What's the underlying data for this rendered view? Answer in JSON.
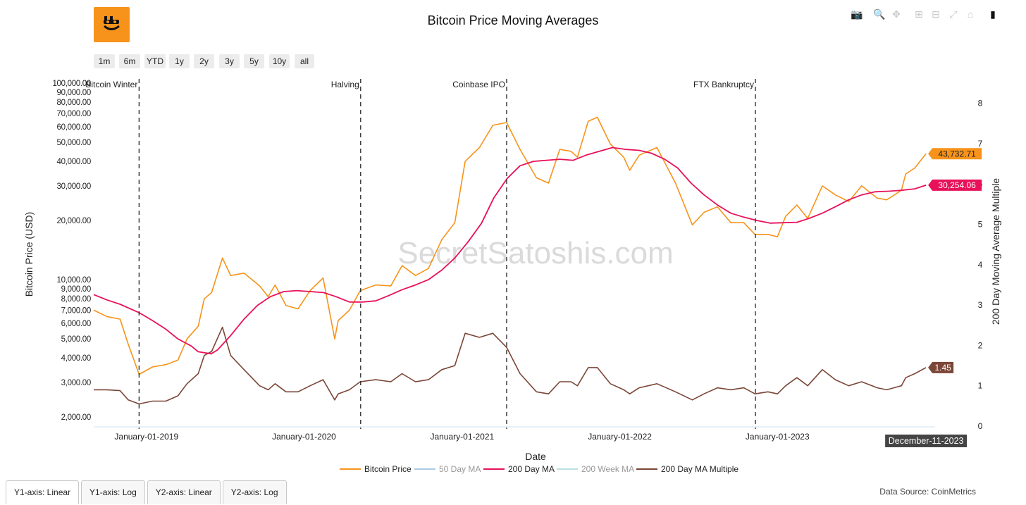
{
  "colors": {
    "bitcoin_price": "#f7931a",
    "ma_50": "#87b7d9",
    "ma_200": "#e8115a",
    "ma_200w": "#9bd4d8",
    "ma_multiple": "#7b4637",
    "event_line": "#222222",
    "date_badge": "#444444"
  },
  "logo_icon": "bitcoin-smile-logo",
  "modebar": [
    {
      "name": "camera-icon",
      "glyph": "📷"
    },
    {
      "name": "zoom-icon",
      "glyph": "🔍"
    },
    {
      "name": "pan-icon",
      "glyph": "✥"
    },
    {
      "name": "zoom-in-icon",
      "glyph": "⊞"
    },
    {
      "name": "zoom-out-icon",
      "glyph": "⊟"
    },
    {
      "name": "autoscale-icon",
      "glyph": "⤢"
    },
    {
      "name": "reset-axes-icon",
      "glyph": "⌂"
    },
    {
      "name": "plotly-logo-icon",
      "glyph": "▮"
    }
  ],
  "range_buttons": [
    "1m",
    "6m",
    "YTD",
    "1y",
    "2y",
    "3y",
    "5y",
    "10y",
    "all"
  ],
  "watermark": "SecretSatoshis.com",
  "tabs": [
    "Y1-axis: Linear",
    "Y1-axis: Log",
    "Y2-axis: Linear",
    "Y2-axis: Log"
  ],
  "data_source": "Data Source: CoinMetrics",
  "chart_data": {
    "type": "line",
    "title": "Bitcoin Price Moving Averages",
    "xlabel": "Date",
    "ylabel": "Bitcoin Price (USD)",
    "y2label": "200 Day Moving Average Multiple",
    "y_scale": "log",
    "ylim": [
      1800,
      100000
    ],
    "y2lim": [
      0,
      8.5
    ],
    "xlim": [
      "2018-09-01",
      "2024-01-01"
    ],
    "x_ticks": [
      "2019-01-01",
      "2020-01-01",
      "2021-01-01",
      "2022-01-01",
      "2023-01-01"
    ],
    "x_tick_labels": [
      "January-01-2019",
      "January-01-2020",
      "January-01-2021",
      "January-01-2022",
      "January-01-2023"
    ],
    "y_ticks": [
      2000,
      3000,
      4000,
      5000,
      6000,
      7000,
      8000,
      9000,
      10000,
      20000,
      30000,
      40000,
      50000,
      60000,
      70000,
      80000,
      90000,
      100000
    ],
    "y_tick_labels": [
      "2,000.00",
      "3,000.00",
      "4,000.00",
      "5,000.00",
      "6,000.00",
      "7,000.00",
      "8,000.00",
      "9,000.00",
      "10,000.00",
      "20,000.00",
      "30,000.00",
      "40,000.00",
      "50,000.00",
      "60,000.00",
      "70,000.00",
      "80,000.00",
      "90,000.00",
      "100,000.00"
    ],
    "y2_ticks": [
      0,
      1,
      2,
      3,
      4,
      5,
      6,
      7,
      8
    ],
    "y2_tick_labels": [
      "0",
      "1",
      "2",
      "3",
      "4",
      "5",
      "6",
      "7",
      "8"
    ],
    "legend_position": "bottom-center",
    "series": [
      {
        "name": "Bitcoin Price",
        "axis": "y",
        "visible": true,
        "x": [
          "2018-09-01",
          "2018-10-01",
          "2018-11-01",
          "2018-11-20",
          "2018-12-15",
          "2019-01-15",
          "2019-02-15",
          "2019-03-15",
          "2019-04-05",
          "2019-05-01",
          "2019-05-15",
          "2019-06-01",
          "2019-06-26",
          "2019-07-15",
          "2019-08-15",
          "2019-09-20",
          "2019-10-10",
          "2019-10-26",
          "2019-11-20",
          "2019-12-18",
          "2020-01-15",
          "2020-02-14",
          "2020-03-12",
          "2020-03-20",
          "2020-04-15",
          "2020-05-10",
          "2020-06-15",
          "2020-07-20",
          "2020-08-15",
          "2020-09-15",
          "2020-10-15",
          "2020-11-15",
          "2020-12-15",
          "2021-01-08",
          "2021-02-10",
          "2021-03-13",
          "2021-04-14",
          "2021-05-15",
          "2021-06-22",
          "2021-07-20",
          "2021-08-15",
          "2021-09-10",
          "2021-09-25",
          "2021-10-20",
          "2021-11-10",
          "2021-12-10",
          "2022-01-10",
          "2022-01-24",
          "2022-02-15",
          "2022-03-28",
          "2022-05-10",
          "2022-06-18",
          "2022-07-15",
          "2022-08-15",
          "2022-09-15",
          "2022-10-15",
          "2022-11-10",
          "2022-12-10",
          "2023-01-01",
          "2023-01-20",
          "2023-02-15",
          "2023-03-12",
          "2023-04-15",
          "2023-05-15",
          "2023-06-15",
          "2023-07-15",
          "2023-08-20",
          "2023-09-11",
          "2023-10-15",
          "2023-10-25",
          "2023-11-15",
          "2023-12-11"
        ],
        "values": [
          7000,
          6500,
          6300,
          4700,
          3300,
          3600,
          3700,
          3900,
          5000,
          5800,
          8000,
          8600,
          12900,
          10500,
          10800,
          9300,
          8200,
          9400,
          7400,
          7100,
          8800,
          10200,
          5000,
          6200,
          7000,
          8800,
          9400,
          9300,
          11800,
          10500,
          11400,
          16000,
          19500,
          40000,
          47000,
          61000,
          63000,
          46000,
          33000,
          31000,
          46000,
          45000,
          42000,
          64000,
          67000,
          49000,
          42000,
          36000,
          43000,
          47000,
          31000,
          19000,
          22000,
          23500,
          19500,
          19500,
          17000,
          17000,
          16550,
          21000,
          24000,
          20500,
          30000,
          27000,
          25000,
          30000,
          26000,
          25500,
          28500,
          34500,
          37000,
          43732.71
        ]
      },
      {
        "name": "50 Day MA",
        "axis": "y",
        "visible": false,
        "x": [],
        "values": []
      },
      {
        "name": "200 Day MA",
        "axis": "y",
        "visible": true,
        "x": [
          "2018-09-01",
          "2018-10-01",
          "2018-11-01",
          "2018-12-15",
          "2019-01-15",
          "2019-02-15",
          "2019-03-15",
          "2019-04-15",
          "2019-05-01",
          "2019-05-31",
          "2019-06-15",
          "2019-07-15",
          "2019-08-15",
          "2019-09-15",
          "2019-10-15",
          "2019-11-15",
          "2019-12-15",
          "2020-01-15",
          "2020-02-15",
          "2020-03-15",
          "2020-04-15",
          "2020-05-15",
          "2020-06-15",
          "2020-07-15",
          "2020-08-15",
          "2020-09-15",
          "2020-10-15",
          "2020-11-15",
          "2020-12-15",
          "2021-01-15",
          "2021-02-15",
          "2021-03-15",
          "2021-04-15",
          "2021-05-15",
          "2021-06-15",
          "2021-07-15",
          "2021-08-15",
          "2021-09-15",
          "2021-10-15",
          "2021-11-15",
          "2021-12-15",
          "2022-01-15",
          "2022-02-15",
          "2022-03-15",
          "2022-04-15",
          "2022-05-15",
          "2022-06-15",
          "2022-07-15",
          "2022-08-15",
          "2022-09-15",
          "2022-10-15",
          "2022-11-15",
          "2022-12-15",
          "2023-01-15",
          "2023-02-15",
          "2023-03-15",
          "2023-04-15",
          "2023-05-15",
          "2023-06-15",
          "2023-07-15",
          "2023-08-15",
          "2023-09-15",
          "2023-10-15",
          "2023-11-15",
          "2023-12-11"
        ],
        "values": [
          8400,
          7900,
          7500,
          6800,
          6200,
          5600,
          5000,
          4600,
          4300,
          4200,
          4400,
          5200,
          6300,
          7400,
          8200,
          8700,
          8800,
          8700,
          8600,
          8200,
          7700,
          7700,
          7800,
          8300,
          8900,
          9400,
          10000,
          11200,
          12900,
          15600,
          19400,
          26000,
          32700,
          38000,
          40000,
          40500,
          41000,
          40500,
          43000,
          45000,
          47000,
          46000,
          45500,
          44000,
          41000,
          37000,
          31000,
          27000,
          24000,
          21800,
          20800,
          20000,
          19400,
          19500,
          19600,
          20500,
          21800,
          23500,
          25500,
          27000,
          28000,
          28200,
          28500,
          29000,
          30254.06
        ]
      },
      {
        "name": "200 Week MA",
        "axis": "y",
        "visible": false,
        "x": [],
        "values": []
      },
      {
        "name": "200 Day MA Multiple",
        "axis": "y2",
        "visible": true,
        "x": [
          "2018-09-01",
          "2018-10-01",
          "2018-11-01",
          "2018-11-20",
          "2018-12-15",
          "2019-01-15",
          "2019-02-15",
          "2019-03-15",
          "2019-04-05",
          "2019-05-01",
          "2019-05-15",
          "2019-06-01",
          "2019-06-26",
          "2019-07-15",
          "2019-08-15",
          "2019-09-20",
          "2019-10-10",
          "2019-10-26",
          "2019-11-20",
          "2019-12-18",
          "2020-01-15",
          "2020-02-14",
          "2020-03-12",
          "2020-03-20",
          "2020-04-15",
          "2020-05-10",
          "2020-06-15",
          "2020-07-20",
          "2020-08-15",
          "2020-09-15",
          "2020-10-15",
          "2020-11-15",
          "2020-12-15",
          "2021-01-08",
          "2021-02-10",
          "2021-03-13",
          "2021-04-14",
          "2021-05-15",
          "2021-06-22",
          "2021-07-20",
          "2021-08-15",
          "2021-09-10",
          "2021-09-25",
          "2021-10-20",
          "2021-11-10",
          "2021-12-10",
          "2022-01-10",
          "2022-01-24",
          "2022-02-15",
          "2022-03-28",
          "2022-05-10",
          "2022-06-18",
          "2022-07-15",
          "2022-08-15",
          "2022-09-15",
          "2022-10-15",
          "2022-11-10",
          "2022-12-10",
          "2023-01-01",
          "2023-01-20",
          "2023-02-15",
          "2023-03-12",
          "2023-04-15",
          "2023-05-15",
          "2023-06-15",
          "2023-07-15",
          "2023-08-20",
          "2023-09-11",
          "2023-10-15",
          "2023-10-25",
          "2023-11-15",
          "2023-12-11"
        ],
        "values": [
          0.9,
          0.9,
          0.88,
          0.65,
          0.55,
          0.62,
          0.62,
          0.75,
          1.05,
          1.3,
          1.75,
          1.85,
          2.45,
          1.75,
          1.4,
          1.0,
          0.9,
          1.05,
          0.85,
          0.85,
          1.0,
          1.15,
          0.65,
          0.8,
          0.9,
          1.1,
          1.15,
          1.1,
          1.3,
          1.1,
          1.15,
          1.4,
          1.5,
          2.3,
          2.2,
          2.3,
          1.95,
          1.3,
          0.85,
          0.8,
          1.1,
          1.1,
          1.0,
          1.45,
          1.45,
          1.05,
          0.9,
          0.8,
          0.95,
          1.05,
          0.85,
          0.65,
          0.8,
          0.95,
          0.9,
          0.95,
          0.8,
          0.85,
          0.8,
          1.0,
          1.2,
          1.0,
          1.4,
          1.15,
          1.0,
          1.1,
          0.95,
          0.9,
          1.0,
          1.2,
          1.3,
          1.45
        ]
      }
    ],
    "events": [
      {
        "date": "2018-12-15",
        "label": "Bitcoin Winter"
      },
      {
        "date": "2020-05-11",
        "label": "Halving"
      },
      {
        "date": "2021-04-14",
        "label": "Coinbase IPO"
      },
      {
        "date": "2022-11-11",
        "label": "FTX Bankruptcy"
      }
    ],
    "last_value_labels": [
      {
        "series": "Bitcoin Price",
        "text": "43,732.71"
      },
      {
        "series": "200 Day MA",
        "text": "30,254.06"
      },
      {
        "series": "200 Day MA Multiple",
        "text": "1.45"
      }
    ],
    "hover_date": {
      "date": "2023-12-11",
      "text": "December-11-2023"
    }
  }
}
